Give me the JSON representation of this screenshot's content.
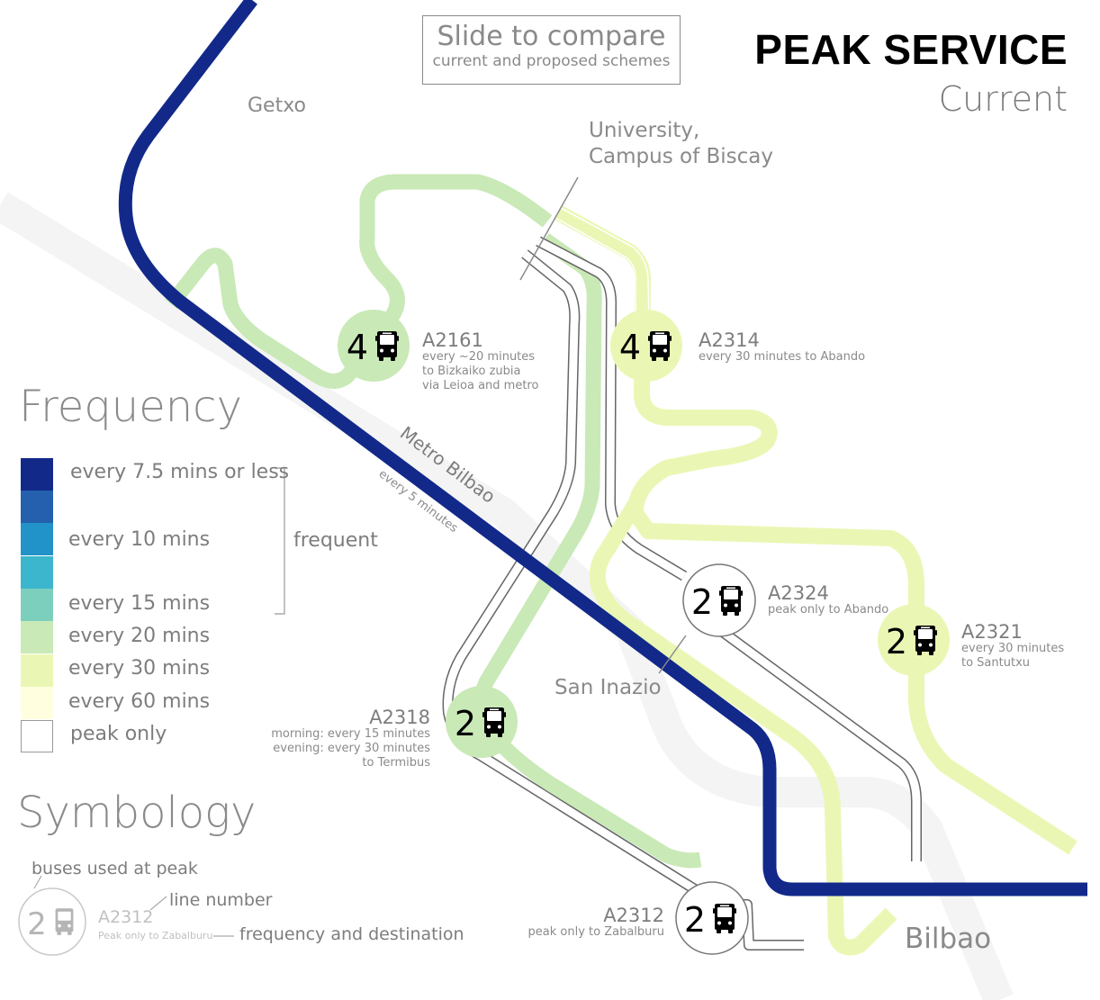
{
  "header": {
    "title": "PEAK SERVICE",
    "subtitle": "Current"
  },
  "compare_button": {
    "line1": "Slide to compare",
    "line2": "current and proposed schemes"
  },
  "places": {
    "getxo": "Getxo",
    "university": "University,",
    "university2": "Campus of Biscay",
    "san_inazio": "San Inazio",
    "bilbao": "Bilbao"
  },
  "metro": {
    "name": "Metro Bilbao",
    "frequency": "every 5 minutes",
    "color": "#12298a"
  },
  "routes": [
    {
      "id": "a2161",
      "buses": "4",
      "name": "A2161",
      "desc": [
        "every ~20 minutes",
        "to Bizkaiko zubia",
        "via Leioa and metro"
      ],
      "color": "#c9e9b7"
    },
    {
      "id": "a2314",
      "buses": "4",
      "name": "A2314",
      "desc": [
        "every 30 minutes to Abando"
      ],
      "color": "#eaf7b4"
    },
    {
      "id": "a2324",
      "buses": "2",
      "name": "A2324",
      "desc": [
        "peak only to Abando"
      ],
      "color": "#ffffff"
    },
    {
      "id": "a2321",
      "buses": "2",
      "name": "A2321",
      "desc": [
        "every 30 minutes",
        "to Santutxu"
      ],
      "color": "#eaf7b4"
    },
    {
      "id": "a2318",
      "buses": "2",
      "name": "A2318",
      "desc": [
        "morning: every 15 minutes",
        "evening: every 30 minutes",
        "to Termibus"
      ],
      "color": "#c9e9b7"
    },
    {
      "id": "a2312",
      "buses": "2",
      "name": "A2312",
      "desc": [
        "peak only to Zabalburu"
      ],
      "color": "#ffffff"
    }
  ],
  "frequency_legend": {
    "heading": "Frequency",
    "items": [
      {
        "label": "every 7.5 mins or less",
        "color": "#12298a"
      },
      {
        "label": "",
        "color": "#2460ad"
      },
      {
        "label": "every 10 mins",
        "color": "#2293c8"
      },
      {
        "label": "",
        "color": "#3cb6cc"
      },
      {
        "label": "every 15 mins",
        "color": "#7dcfbd"
      },
      {
        "label": "every 20 mins",
        "color": "#c9e9b7"
      },
      {
        "label": "every 30 mins",
        "color": "#eaf7b4"
      },
      {
        "label": "every 60 mins",
        "color": "#ffffdf"
      },
      {
        "label": "peak only",
        "color": "#ffffff"
      }
    ],
    "group_label": "frequent"
  },
  "symbology": {
    "heading": "Symbology",
    "buses_label": "buses used at peak",
    "line_number_label": "line number",
    "frequency_label": "frequency and destination",
    "sample_buses": "2",
    "sample_line": "A2312",
    "sample_desc": "Peak only to Zabalburu"
  }
}
